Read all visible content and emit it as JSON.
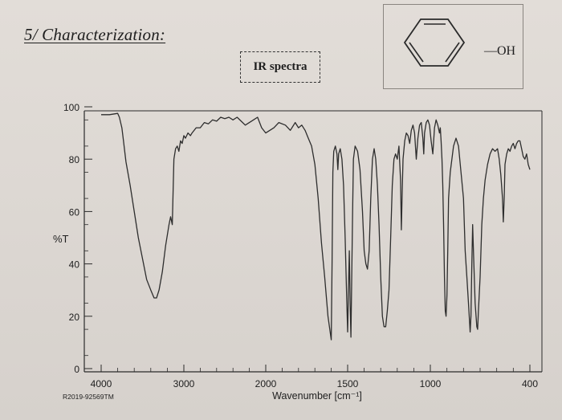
{
  "header": {
    "section_title": "5/ Characterization:",
    "spectra_label": "IR spectra"
  },
  "structure": {
    "name_icon": "phenol-structure-icon",
    "substituent": "—OH"
  },
  "chart_data": {
    "type": "line",
    "title": "",
    "xlabel": "Wavenumber [cm⁻¹]",
    "ylabel": "%T",
    "xlim": [
      4000,
      400
    ],
    "ylim": [
      0,
      100
    ],
    "x_axis_reversed": true,
    "x_ticks": [
      4000,
      3000,
      2000,
      1500,
      1000,
      400
    ],
    "x_tick_labels": [
      "4000",
      "3000",
      "2000",
      "1500",
      "1000",
      "400"
    ],
    "y_ticks": [
      0,
      20,
      40,
      60,
      80,
      100
    ],
    "y_tick_labels": [
      "0",
      "20",
      "40",
      "60",
      "80",
      "100"
    ],
    "grid": false,
    "legend": "none",
    "footnote": "R2019-92569TM",
    "series": [
      {
        "values": [
          [
            4000,
            97
          ],
          [
            3900,
            97
          ],
          [
            3800,
            97.5
          ],
          [
            3780,
            96
          ],
          [
            3750,
            92
          ],
          [
            3730,
            87
          ],
          [
            3700,
            79
          ],
          [
            3650,
            70
          ],
          [
            3600,
            60
          ],
          [
            3550,
            50
          ],
          [
            3500,
            42
          ],
          [
            3450,
            34
          ],
          [
            3400,
            30
          ],
          [
            3360,
            27
          ],
          [
            3330,
            27
          ],
          [
            3300,
            30
          ],
          [
            3260,
            37
          ],
          [
            3220,
            47
          ],
          [
            3180,
            55
          ],
          [
            3160,
            58
          ],
          [
            3140,
            55
          ],
          [
            3120,
            80
          ],
          [
            3100,
            84
          ],
          [
            3080,
            85
          ],
          [
            3060,
            83
          ],
          [
            3040,
            87
          ],
          [
            3020,
            86
          ],
          [
            3000,
            89
          ],
          [
            2980,
            88
          ],
          [
            2950,
            90
          ],
          [
            2920,
            89
          ],
          [
            2900,
            90
          ],
          [
            2850,
            92
          ],
          [
            2800,
            92
          ],
          [
            2750,
            94
          ],
          [
            2700,
            93.5
          ],
          [
            2650,
            95
          ],
          [
            2600,
            94.5
          ],
          [
            2550,
            96
          ],
          [
            2500,
            95.5
          ],
          [
            2450,
            96
          ],
          [
            2400,
            95
          ],
          [
            2350,
            96
          ],
          [
            2300,
            94.5
          ],
          [
            2250,
            93
          ],
          [
            2200,
            94
          ],
          [
            2150,
            95
          ],
          [
            2100,
            96
          ],
          [
            2050,
            92
          ],
          [
            2000,
            90
          ],
          [
            1950,
            92
          ],
          [
            1920,
            94
          ],
          [
            1880,
            93
          ],
          [
            1850,
            91
          ],
          [
            1820,
            94
          ],
          [
            1800,
            92
          ],
          [
            1780,
            93
          ],
          [
            1760,
            91
          ],
          [
            1740,
            88
          ],
          [
            1720,
            85
          ],
          [
            1700,
            78
          ],
          [
            1680,
            65
          ],
          [
            1660,
            48
          ],
          [
            1640,
            35
          ],
          [
            1620,
            20
          ],
          [
            1600,
            11
          ],
          [
            1595,
            40
          ],
          [
            1590,
            75
          ],
          [
            1585,
            83
          ],
          [
            1575,
            85
          ],
          [
            1565,
            82
          ],
          [
            1560,
            76
          ],
          [
            1555,
            82
          ],
          [
            1545,
            84
          ],
          [
            1535,
            80
          ],
          [
            1525,
            70
          ],
          [
            1515,
            50
          ],
          [
            1505,
            25
          ],
          [
            1500,
            14
          ],
          [
            1495,
            30
          ],
          [
            1490,
            45
          ],
          [
            1485,
            25
          ],
          [
            1480,
            12
          ],
          [
            1475,
            35
          ],
          [
            1470,
            60
          ],
          [
            1465,
            80
          ],
          [
            1455,
            85
          ],
          [
            1440,
            83
          ],
          [
            1425,
            76
          ],
          [
            1410,
            60
          ],
          [
            1400,
            45
          ],
          [
            1390,
            40
          ],
          [
            1380,
            38
          ],
          [
            1370,
            45
          ],
          [
            1360,
            65
          ],
          [
            1350,
            80
          ],
          [
            1340,
            84
          ],
          [
            1330,
            80
          ],
          [
            1320,
            70
          ],
          [
            1310,
            55
          ],
          [
            1300,
            35
          ],
          [
            1290,
            20
          ],
          [
            1280,
            16
          ],
          [
            1270,
            16
          ],
          [
            1260,
            22
          ],
          [
            1250,
            30
          ],
          [
            1240,
            50
          ],
          [
            1230,
            70
          ],
          [
            1220,
            80
          ],
          [
            1210,
            82
          ],
          [
            1200,
            80
          ],
          [
            1190,
            85
          ],
          [
            1180,
            72
          ],
          [
            1175,
            53
          ],
          [
            1170,
            68
          ],
          [
            1165,
            80
          ],
          [
            1155,
            87
          ],
          [
            1145,
            90
          ],
          [
            1135,
            89
          ],
          [
            1125,
            86
          ],
          [
            1115,
            91
          ],
          [
            1105,
            93
          ],
          [
            1095,
            90
          ],
          [
            1085,
            80
          ],
          [
            1075,
            88
          ],
          [
            1065,
            93
          ],
          [
            1055,
            94
          ],
          [
            1045,
            88
          ],
          [
            1040,
            82
          ],
          [
            1035,
            90
          ],
          [
            1025,
            94
          ],
          [
            1015,
            95
          ],
          [
            1005,
            93
          ],
          [
            995,
            87
          ],
          [
            985,
            82
          ],
          [
            975,
            92
          ],
          [
            965,
            95
          ],
          [
            955,
            93
          ],
          [
            945,
            90
          ],
          [
            940,
            92
          ],
          [
            935,
            87
          ],
          [
            930,
            80
          ],
          [
            925,
            70
          ],
          [
            920,
            55
          ],
          [
            915,
            35
          ],
          [
            910,
            22
          ],
          [
            905,
            20
          ],
          [
            900,
            28
          ],
          [
            895,
            45
          ],
          [
            890,
            65
          ],
          [
            880,
            75
          ],
          [
            860,
            85
          ],
          [
            845,
            88
          ],
          [
            830,
            85
          ],
          [
            815,
            75
          ],
          [
            800,
            65
          ],
          [
            790,
            45
          ],
          [
            780,
            35
          ],
          [
            770,
            25
          ],
          [
            760,
            14
          ],
          [
            755,
            20
          ],
          [
            750,
            40
          ],
          [
            745,
            55
          ],
          [
            740,
            45
          ],
          [
            730,
            25
          ],
          [
            720,
            16
          ],
          [
            715,
            15
          ],
          [
            710,
            22
          ],
          [
            700,
            35
          ],
          [
            690,
            55
          ],
          [
            680,
            65
          ],
          [
            670,
            72
          ],
          [
            655,
            78
          ],
          [
            640,
            82
          ],
          [
            625,
            84
          ],
          [
            610,
            83
          ],
          [
            595,
            84
          ],
          [
            585,
            80
          ],
          [
            575,
            74
          ],
          [
            565,
            65
          ],
          [
            560,
            56
          ],
          [
            555,
            65
          ],
          [
            550,
            78
          ],
          [
            540,
            82
          ],
          [
            530,
            84
          ],
          [
            520,
            83
          ],
          [
            510,
            85
          ],
          [
            500,
            86
          ],
          [
            490,
            84
          ],
          [
            480,
            86
          ],
          [
            470,
            87
          ],
          [
            460,
            87
          ],
          [
            450,
            84
          ],
          [
            440,
            81
          ],
          [
            430,
            80
          ],
          [
            420,
            82
          ],
          [
            410,
            78
          ],
          [
            400,
            76
          ]
        ]
      }
    ]
  }
}
